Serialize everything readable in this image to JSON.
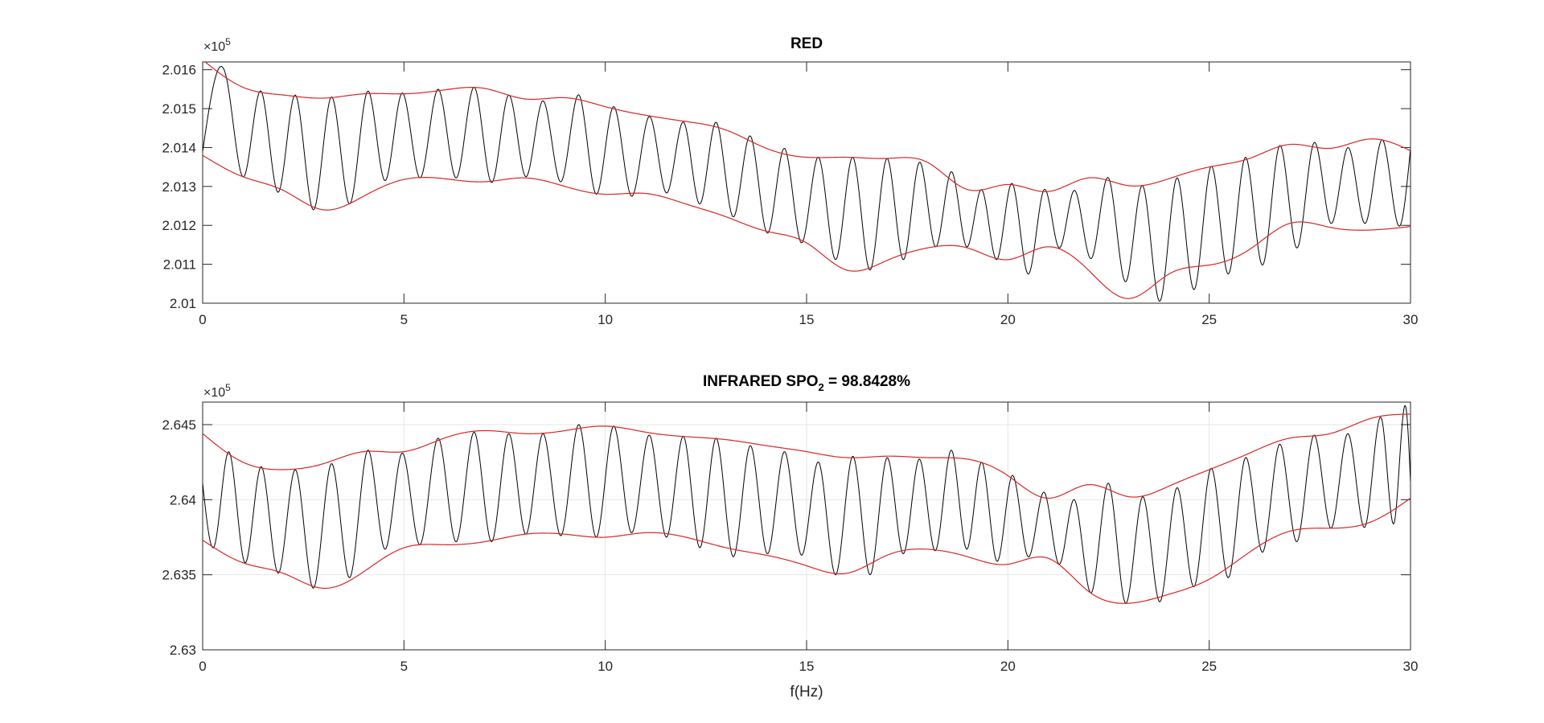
{
  "chart_data": [
    {
      "id": "red",
      "type": "line",
      "title": "RED",
      "xlabel": "",
      "ylabel": "",
      "xlim": [
        0,
        30
      ],
      "ylim": [
        2.01,
        2.0162
      ],
      "x_ticks": [
        "0",
        "5",
        "10",
        "15",
        "20",
        "25",
        "30"
      ],
      "y_ticks": [
        "2.01",
        "2.011",
        "2.012",
        "2.013",
        "2.014",
        "2.015",
        "2.016"
      ],
      "y_exponent": {
        "base": "×10",
        "power": "5"
      },
      "grid": false,
      "colors": {
        "signal": "#000000",
        "envelope": "#d62728"
      },
      "series": [
        {
          "role": "signal",
          "beat_peaks_x": [
            0.6,
            1.45,
            2.3,
            3.2,
            4.1,
            4.95,
            5.85,
            6.75,
            7.6,
            8.45,
            9.35,
            10.2,
            11.1,
            11.95,
            12.75,
            13.6,
            14.45,
            15.3,
            16.15,
            17.0,
            17.8,
            18.6,
            19.35,
            20.1,
            20.9,
            21.65,
            22.5,
            23.35,
            24.2,
            25.05,
            25.9,
            26.75,
            27.6,
            28.45,
            29.3
          ],
          "beat_peaks_y": [
            2.01575,
            2.01545,
            2.01535,
            2.0153,
            2.01545,
            2.0154,
            2.0155,
            2.01555,
            2.01535,
            2.0152,
            2.01535,
            2.01505,
            2.0148,
            2.01465,
            2.01465,
            2.0143,
            2.01398,
            2.01375,
            2.01375,
            2.01372,
            2.01362,
            2.01338,
            2.01292,
            2.01308,
            2.01292,
            2.0129,
            2.01322,
            2.01302,
            2.01322,
            2.01352,
            2.01375,
            2.01405,
            2.01412,
            2.014,
            2.0142
          ],
          "troughs_y": [
            2.0139,
            2.01325,
            2.01285,
            2.0124,
            2.01255,
            2.01315,
            2.01322,
            2.01322,
            2.0131,
            2.01325,
            2.01312,
            2.0128,
            2.01275,
            2.01283,
            2.01255,
            2.01222,
            2.0118,
            2.01155,
            2.01112,
            2.01085,
            2.01112,
            2.01145,
            2.01145,
            2.01112,
            2.01075,
            2.01142,
            2.01115,
            2.01055,
            2.01005,
            2.01035,
            2.01075,
            2.01098,
            2.01142,
            2.01205,
            2.01205,
            2.01198
          ]
        },
        {
          "role": "upper envelope",
          "x": [
            0,
            1,
            2,
            3,
            4,
            5,
            6,
            7,
            8,
            9,
            10,
            11,
            12,
            13,
            14,
            15,
            16,
            17,
            18,
            19,
            20,
            21,
            22,
            23,
            24,
            25,
            26,
            27,
            28,
            29,
            30
          ],
          "y": [
            2.01625,
            2.01555,
            2.01535,
            2.01527,
            2.01538,
            2.01538,
            2.01548,
            2.01552,
            2.01525,
            2.01528,
            2.01505,
            2.01483,
            2.01467,
            2.01445,
            2.01398,
            2.01375,
            2.01375,
            2.01372,
            2.01362,
            2.01292,
            2.01305,
            2.01287,
            2.01322,
            2.01302,
            2.0132,
            2.0135,
            2.01372,
            2.01408,
            2.01398,
            2.01422,
            2.01392
          ]
        },
        {
          "role": "lower envelope",
          "x": [
            0,
            1,
            2,
            3,
            4,
            5,
            6,
            7,
            8,
            9,
            10,
            11,
            12,
            13,
            14,
            15,
            16,
            17,
            18,
            19,
            20,
            21,
            22,
            23,
            24,
            25,
            26,
            27,
            28,
            29,
            30
          ],
          "y": [
            2.0138,
            2.01325,
            2.0129,
            2.0124,
            2.01275,
            2.01318,
            2.0132,
            2.01312,
            2.01322,
            2.013,
            2.0128,
            2.01282,
            2.01255,
            2.01222,
            2.01185,
            2.01155,
            2.01085,
            2.0111,
            2.01142,
            2.01142,
            2.01112,
            2.01145,
            2.01085,
            2.01012,
            2.01075,
            2.01098,
            2.01138,
            2.01205,
            2.01195,
            2.01188,
            2.01197
          ]
        }
      ]
    },
    {
      "id": "infrared",
      "type": "line",
      "title": "INFRARED SPO",
      "title_subscript": "2",
      "title_suffix": " = 98.8428%",
      "xlabel": "f(Hz)",
      "ylabel": "",
      "xlim": [
        0,
        30
      ],
      "ylim": [
        2.63,
        2.6465
      ],
      "x_ticks": [
        "0",
        "5",
        "10",
        "15",
        "20",
        "25",
        "30"
      ],
      "y_ticks": [
        "2.63",
        "2.635",
        "2.64",
        "2.645"
      ],
      "y_exponent": {
        "base": "×10",
        "power": "5"
      },
      "grid": true,
      "colors": {
        "signal": "#000000",
        "envelope": "#d62728"
      },
      "series": [
        {
          "role": "signal",
          "start_y": 2.6411,
          "beat_peaks_x": [
            0.65,
            1.45,
            2.3,
            3.2,
            4.1,
            4.95,
            5.85,
            6.75,
            7.6,
            8.45,
            9.35,
            10.2,
            11.1,
            11.95,
            12.75,
            13.6,
            14.45,
            15.3,
            16.15,
            17.0,
            17.8,
            18.6,
            19.35,
            20.1,
            20.9,
            21.65,
            22.5,
            23.35,
            24.2,
            25.05,
            25.9,
            26.75,
            27.6,
            28.45,
            29.3,
            29.9
          ],
          "beat_peaks_y": [
            2.6432,
            2.6422,
            2.642,
            2.6424,
            2.6433,
            2.6431,
            2.6441,
            2.6445,
            2.6444,
            2.6444,
            2.645,
            2.6449,
            2.6443,
            2.6442,
            2.6441,
            2.6436,
            2.6432,
            2.6425,
            2.6429,
            2.6428,
            2.6427,
            2.6433,
            2.6425,
            2.6416,
            2.6405,
            2.64,
            2.6411,
            2.6402,
            2.6408,
            2.6421,
            2.6428,
            2.6437,
            2.6443,
            2.6444,
            2.6452,
            2.6459
          ],
          "troughs_y": [
            2.6369,
            2.6358,
            2.6351,
            2.6341,
            2.6348,
            2.6367,
            2.637,
            2.6372,
            2.6372,
            2.6377,
            2.6376,
            2.6375,
            2.6378,
            2.6375,
            2.6368,
            2.6362,
            2.6364,
            2.6363,
            2.635,
            2.635,
            2.6364,
            2.6366,
            2.6367,
            2.6359,
            2.6362,
            2.6357,
            2.6338,
            2.6331,
            2.6332,
            2.6342,
            2.6348,
            2.6365,
            2.6372,
            2.6381,
            2.6382,
            2.6385,
            2.6412
          ]
        },
        {
          "role": "upper envelope",
          "x": [
            0,
            1,
            2,
            3,
            4,
            5,
            6,
            7,
            8,
            9,
            10,
            11,
            12,
            13,
            14,
            15,
            16,
            17,
            18,
            19,
            20,
            21,
            22,
            23,
            24,
            25,
            26,
            27,
            28,
            29,
            30
          ],
          "y": [
            2.6444,
            2.6425,
            2.642,
            2.6424,
            2.6432,
            2.6432,
            2.6441,
            2.6446,
            2.6444,
            2.6446,
            2.6449,
            2.6445,
            2.6442,
            2.644,
            2.6436,
            2.6432,
            2.6428,
            2.6429,
            2.6428,
            2.6427,
            2.6416,
            2.6401,
            2.641,
            2.6402,
            2.6409,
            2.642,
            2.6431,
            2.6441,
            2.6444,
            2.6454,
            2.6457
          ]
        },
        {
          "role": "lower envelope",
          "x": [
            0,
            1,
            2,
            3,
            4,
            5,
            6,
            7,
            8,
            9,
            10,
            11,
            12,
            13,
            14,
            15,
            16,
            17,
            18,
            19,
            20,
            21,
            22,
            23,
            24,
            25,
            26,
            27,
            28,
            29,
            30
          ],
          "y": [
            2.6373,
            2.6358,
            2.6351,
            2.6341,
            2.6352,
            2.6368,
            2.637,
            2.6372,
            2.6377,
            2.6377,
            2.6375,
            2.6378,
            2.6375,
            2.6368,
            2.6363,
            2.6356,
            2.6351,
            2.6363,
            2.6367,
            2.6362,
            2.6357,
            2.6361,
            2.6339,
            2.6331,
            2.6337,
            2.6347,
            2.6365,
            2.6379,
            2.6381,
            2.6385,
            2.6401
          ]
        }
      ]
    }
  ]
}
